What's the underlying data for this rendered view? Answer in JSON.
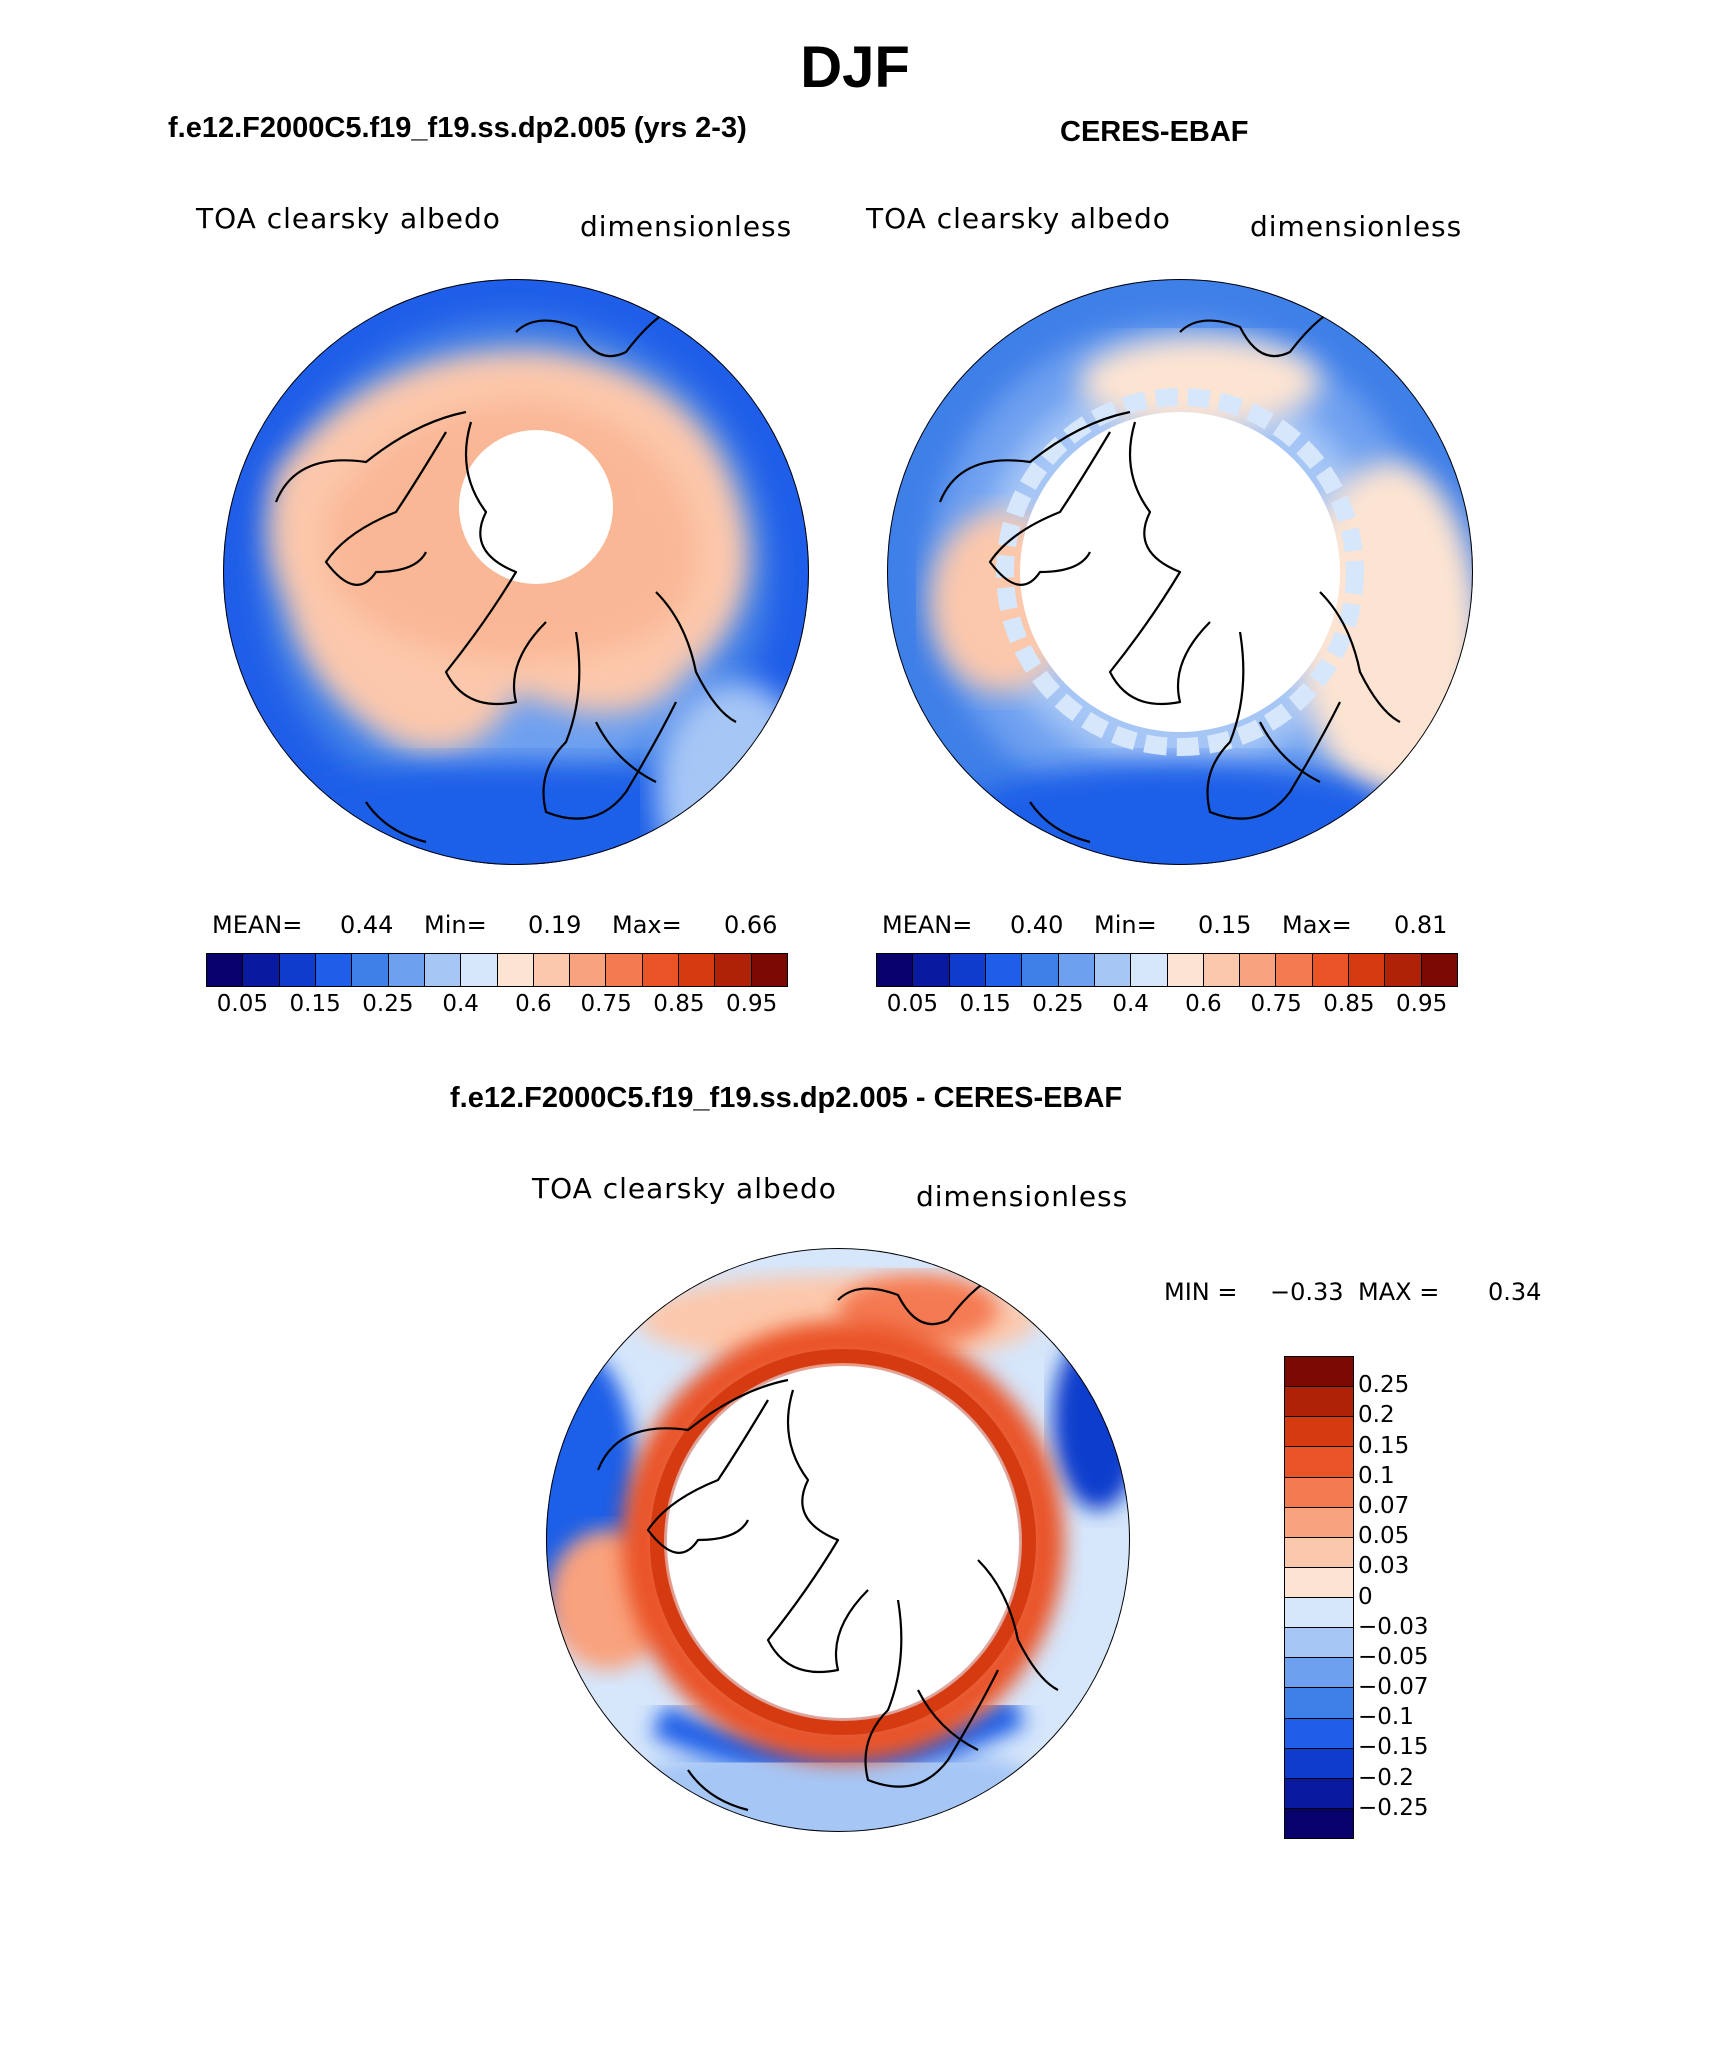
{
  "figure": {
    "season": "DJF"
  },
  "panels": [
    {
      "title": "f.e12.F2000C5.f19_f19.ss.dp2.005 (yrs 2-3)",
      "variable": "TOA clearsky albedo",
      "units": "dimensionless",
      "stats": {
        "mean_label": "MEAN=",
        "mean": "0.44",
        "min_label": "Min=",
        "min": "0.19",
        "max_label": "Max=",
        "max": "0.66"
      }
    },
    {
      "title": "CERES-EBAF",
      "variable": "TOA clearsky albedo",
      "units": "dimensionless",
      "stats": {
        "mean_label": "MEAN=",
        "mean": "0.40",
        "min_label": "Min=",
        "min": "0.15",
        "max_label": "Max=",
        "max": "0.81"
      }
    }
  ],
  "difference": {
    "title": "f.e12.F2000C5.f19_f19.ss.dp2.005 - CERES-EBAF",
    "variable": "TOA clearsky albedo",
    "units": "dimensionless",
    "min_label": "MIN =",
    "min": "−0.33",
    "max_label": "MAX =",
    "max": "0.34"
  },
  "colorbar_abs": {
    "ticks": [
      "0.05",
      "0.15",
      "0.25",
      "0.4",
      "0.6",
      "0.75",
      "0.85",
      "0.95"
    ],
    "colors": [
      "#08006b",
      "#0a1aa0",
      "#0f3ccc",
      "#1f5ee8",
      "#3f7fe8",
      "#6ea0f0",
      "#a6c6f6",
      "#d6e6fb",
      "#fde4d2",
      "#fcc8ac",
      "#f9a27e",
      "#f47a52",
      "#ea5325",
      "#d63a10",
      "#b02208",
      "#7a0a02"
    ]
  },
  "colorbar_diff": {
    "ticks": [
      "0.25",
      "0.2",
      "0.15",
      "0.1",
      "0.07",
      "0.05",
      "0.03",
      "0",
      "−0.03",
      "−0.05",
      "−0.07",
      "−0.1",
      "−0.15",
      "−0.2",
      "−0.25"
    ],
    "colors": [
      "#7a0a02",
      "#b02208",
      "#d63a10",
      "#ea5325",
      "#f47a52",
      "#f9a27e",
      "#fcc8ac",
      "#fde4d2",
      "#d6e6fb",
      "#a6c6f6",
      "#6ea0f0",
      "#3f7fe8",
      "#1f5ee8",
      "#0f3ccc",
      "#0a1aa0",
      "#08006b"
    ]
  },
  "chart_data": [
    {
      "type": "heatmap",
      "projection": "polar stereographic (north pole)",
      "title": "f.e12.F2000C5.f19_f19.ss.dp2.005 (yrs 2-3)",
      "variable": "TOA clearsky albedo",
      "units": "dimensionless",
      "levels": [
        0.05,
        0.1,
        0.15,
        0.2,
        0.25,
        0.3,
        0.4,
        0.5,
        0.6,
        0.65,
        0.75,
        0.8,
        0.85,
        0.9,
        0.95
      ],
      "mean": 0.44,
      "min": 0.19,
      "max": 0.66
    },
    {
      "type": "heatmap",
      "projection": "polar stereographic (north pole)",
      "title": "CERES-EBAF",
      "variable": "TOA clearsky albedo",
      "units": "dimensionless",
      "levels": [
        0.05,
        0.1,
        0.15,
        0.2,
        0.25,
        0.3,
        0.4,
        0.5,
        0.6,
        0.65,
        0.75,
        0.8,
        0.85,
        0.9,
        0.95
      ],
      "mean": 0.4,
      "min": 0.15,
      "max": 0.81
    },
    {
      "type": "heatmap",
      "projection": "polar stereographic (north pole)",
      "title": "f.e12.F2000C5.f19_f19.ss.dp2.005 - CERES-EBAF",
      "variable": "TOA clearsky albedo",
      "units": "dimensionless",
      "levels": [
        -0.25,
        -0.2,
        -0.15,
        -0.1,
        -0.07,
        -0.05,
        -0.03,
        0,
        0.03,
        0.05,
        0.07,
        0.1,
        0.15,
        0.2,
        0.25
      ],
      "min": -0.33,
      "max": 0.34
    }
  ]
}
